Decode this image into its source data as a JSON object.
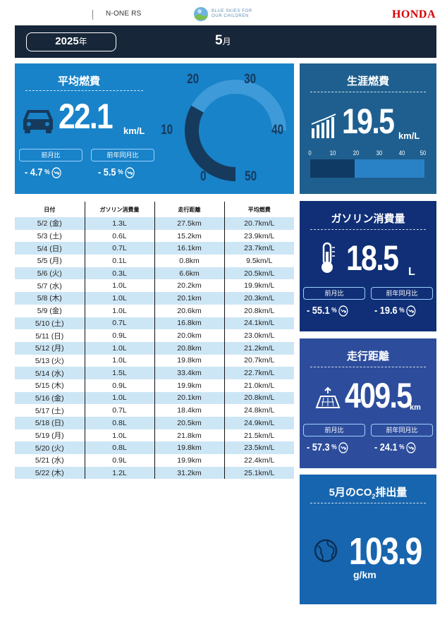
{
  "header": {
    "model": "N-ONE RS",
    "logo_text_line1": "BLUE SKIES FOR",
    "logo_text_line2": "OUR CHILDREN",
    "brand": "HONDA"
  },
  "period": {
    "year": "2025",
    "year_unit": "年",
    "month": "5",
    "month_unit": "月"
  },
  "avg": {
    "title": "平均燃費",
    "value": "22.1",
    "unit": "km/L",
    "prev_month_label": "前月比",
    "prev_year_label": "前年同月比",
    "prev_month_value": "- 4.7",
    "prev_year_value": "- 5.5",
    "pct": "%",
    "gauge": {
      "value": 22.1,
      "min": 0,
      "max": 50,
      "labels": [
        "0",
        "10",
        "20",
        "30",
        "40",
        "50"
      ]
    }
  },
  "table": {
    "headers": [
      "日付",
      "ガソリン消費量",
      "走行距離",
      "平均燃費"
    ],
    "rows": [
      [
        "5/2 (金)",
        "1.3L",
        "27.5km",
        "20.7km/L"
      ],
      [
        "5/3 (土)",
        "0.6L",
        "15.2km",
        "23.9km/L"
      ],
      [
        "5/4 (日)",
        "0.7L",
        "16.1km",
        "23.7km/L"
      ],
      [
        "5/5 (月)",
        "0.1L",
        "0.8km",
        "9.5km/L"
      ],
      [
        "5/6 (火)",
        "0.3L",
        "6.6km",
        "20.5km/L"
      ],
      [
        "5/7 (水)",
        "1.0L",
        "20.2km",
        "19.9km/L"
      ],
      [
        "5/8 (木)",
        "1.0L",
        "20.1km",
        "20.3km/L"
      ],
      [
        "5/9 (金)",
        "1.0L",
        "20.6km",
        "20.8km/L"
      ],
      [
        "5/10 (土)",
        "0.7L",
        "16.8km",
        "24.1km/L"
      ],
      [
        "5/11 (日)",
        "0.9L",
        "20.0km",
        "23.0km/L"
      ],
      [
        "5/12 (月)",
        "1.0L",
        "20.8km",
        "21.2km/L"
      ],
      [
        "5/13 (火)",
        "1.0L",
        "19.8km",
        "20.7km/L"
      ],
      [
        "5/14 (水)",
        "1.5L",
        "33.4km",
        "22.7km/L"
      ],
      [
        "5/15 (木)",
        "0.9L",
        "19.9km",
        "21.0km/L"
      ],
      [
        "5/16 (金)",
        "1.0L",
        "20.1km",
        "20.8km/L"
      ],
      [
        "5/17 (土)",
        "0.7L",
        "18.4km",
        "24.8km/L"
      ],
      [
        "5/18 (日)",
        "0.8L",
        "20.5km",
        "24.9km/L"
      ],
      [
        "5/19 (月)",
        "1.0L",
        "21.8km",
        "21.5km/L"
      ],
      [
        "5/20 (火)",
        "0.8L",
        "19.8km",
        "23.5km/L"
      ],
      [
        "5/21 (水)",
        "0.9L",
        "19.9km",
        "22.4km/L"
      ],
      [
        "5/22 (木)",
        "1.2L",
        "31.2km",
        "25.1km/L"
      ]
    ]
  },
  "lifetime": {
    "title": "生涯燃費",
    "value": "19.5",
    "unit": "km/L",
    "scale": [
      "0",
      "10",
      "20",
      "30",
      "40",
      "50"
    ],
    "bar_value": 19.5,
    "bar_max": 50
  },
  "gasoline": {
    "title": "ガソリン消費量",
    "value": "18.5",
    "unit": "L",
    "prev_month_label": "前月比",
    "prev_year_label": "前年同月比",
    "prev_month_value": "- 55.1",
    "prev_year_value": "- 19.6",
    "pct": "%"
  },
  "distance": {
    "title": "走行距離",
    "value": "409.5",
    "unit": "km",
    "prev_month_label": "前月比",
    "prev_year_label": "前年同月比",
    "prev_month_value": "- 57.3",
    "prev_year_value": "- 24.1",
    "pct": "%"
  },
  "co2": {
    "title_prefix": "5月のCO",
    "title_sub": "2",
    "title_suffix": "排出量",
    "value": "103.9",
    "unit": "g/km"
  },
  "colors": {
    "avg_panel": "#1883c9",
    "lifetime_panel": "#1e5f8f",
    "gas_panel": "#102f77",
    "distance_panel": "#2d4d9c",
    "co2_panel": "#1765ae",
    "header_bar": "#172638",
    "table_alt_row": "#cde6f5",
    "brand_red": "#d40000"
  }
}
